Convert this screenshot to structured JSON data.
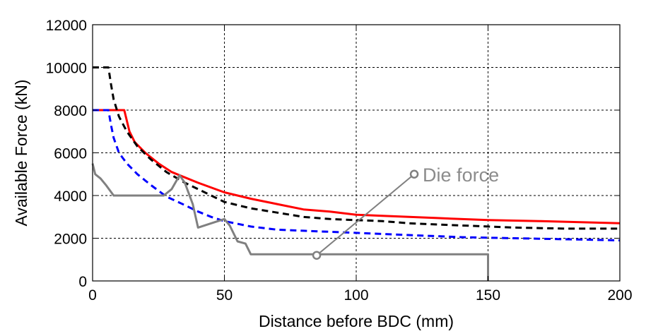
{
  "chart_data": {
    "type": "line",
    "title": "",
    "xlabel": "Distance before BDC (mm)",
    "ylabel": "Available Force (kN)",
    "xlim": [
      0,
      200
    ],
    "ylim": [
      0,
      12000
    ],
    "xticks": [
      0,
      50,
      100,
      150,
      200
    ],
    "yticks": [
      0,
      2000,
      4000,
      6000,
      8000,
      10000,
      12000
    ],
    "xtick_labels": [
      "0",
      "50",
      "100",
      "150",
      "200"
    ],
    "ytick_labels": [
      "0",
      "2000",
      "4000",
      "6000",
      "8000",
      "10000",
      "12000"
    ],
    "grid": true,
    "series": [
      {
        "color": "#ff0000",
        "dash": "solid",
        "points": [
          [
            0,
            8000
          ],
          [
            12,
            8000
          ],
          [
            14,
            7000
          ],
          [
            16,
            6500
          ],
          [
            20,
            6000
          ],
          [
            25,
            5500
          ],
          [
            30,
            5100
          ],
          [
            35,
            4850
          ],
          [
            40,
            4600
          ],
          [
            50,
            4150
          ],
          [
            60,
            3850
          ],
          [
            70,
            3600
          ],
          [
            80,
            3350
          ],
          [
            90,
            3250
          ],
          [
            100,
            3100
          ],
          [
            110,
            3050
          ],
          [
            120,
            3000
          ],
          [
            130,
            2950
          ],
          [
            150,
            2850
          ],
          [
            170,
            2800
          ],
          [
            185,
            2750
          ],
          [
            200,
            2700
          ]
        ]
      },
      {
        "color": "#000000",
        "dash": "dashed",
        "points": [
          [
            0,
            10000
          ],
          [
            6,
            10000
          ],
          [
            7,
            9200
          ],
          [
            8,
            8500
          ],
          [
            10,
            7700
          ],
          [
            13,
            7000
          ],
          [
            17,
            6300
          ],
          [
            22,
            5700
          ],
          [
            28,
            5100
          ],
          [
            35,
            4600
          ],
          [
            40,
            4300
          ],
          [
            50,
            3700
          ],
          [
            60,
            3400
          ],
          [
            70,
            3200
          ],
          [
            80,
            3000
          ],
          [
            90,
            2900
          ],
          [
            100,
            2850
          ],
          [
            110,
            2800
          ],
          [
            120,
            2700
          ],
          [
            140,
            2600
          ],
          [
            160,
            2500
          ],
          [
            180,
            2450
          ],
          [
            200,
            2450
          ]
        ]
      },
      {
        "color": "#0000ff",
        "dash": "dashed",
        "points": [
          [
            0,
            8000
          ],
          [
            6,
            8000
          ],
          [
            7,
            7300
          ],
          [
            8,
            6700
          ],
          [
            10,
            6000
          ],
          [
            13,
            5500
          ],
          [
            17,
            5000
          ],
          [
            22,
            4500
          ],
          [
            28,
            3950
          ],
          [
            35,
            3550
          ],
          [
            40,
            3250
          ],
          [
            45,
            3000
          ],
          [
            50,
            2800
          ],
          [
            60,
            2550
          ],
          [
            70,
            2400
          ],
          [
            80,
            2350
          ],
          [
            90,
            2300
          ],
          [
            100,
            2250
          ],
          [
            120,
            2150
          ],
          [
            140,
            2050
          ],
          [
            160,
            2000
          ],
          [
            180,
            1950
          ],
          [
            200,
            1900
          ]
        ]
      },
      {
        "name": "Die force",
        "color": "#808080",
        "dash": "solid",
        "points": [
          [
            0,
            5500
          ],
          [
            1,
            5000
          ],
          [
            3,
            4800
          ],
          [
            5,
            4500
          ],
          [
            8,
            4000
          ],
          [
            24,
            4000
          ],
          [
            27,
            4000
          ],
          [
            30,
            4300
          ],
          [
            33,
            4950
          ],
          [
            35,
            4600
          ],
          [
            38,
            3600
          ],
          [
            40,
            2500
          ],
          [
            45,
            2700
          ],
          [
            50,
            2900
          ],
          [
            52,
            2600
          ],
          [
            55,
            1850
          ],
          [
            58,
            1750
          ],
          [
            60,
            1250
          ],
          [
            150,
            1250
          ],
          [
            150,
            0
          ]
        ]
      }
    ],
    "annotations": [
      {
        "text": "Die force",
        "series": 3,
        "color": "#808080"
      }
    ]
  }
}
